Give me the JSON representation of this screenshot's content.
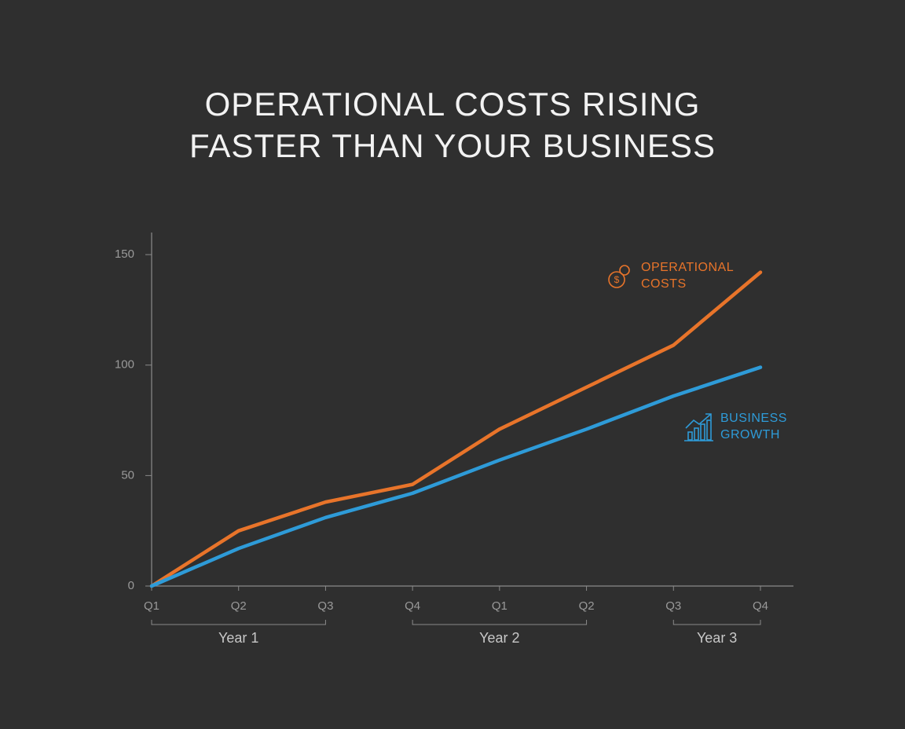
{
  "chart_data": {
    "type": "line",
    "title": [
      "OPERATIONAL COSTS RISING",
      "FASTER THAN YOUR BUSINESS"
    ],
    "categories": [
      "Q1",
      "Q2",
      "Q3",
      "Q4",
      "Q1",
      "Q2",
      "Q3",
      "Q4"
    ],
    "groups": [
      {
        "label": "Year 1",
        "from": 0,
        "to": 2
      },
      {
        "label": "Year 2",
        "from": 3,
        "to": 5
      },
      {
        "label": "Year 3",
        "from": 6,
        "to": 7
      }
    ],
    "series": [
      {
        "name": "OPERATIONAL COSTS",
        "color": "#e8742a",
        "values": [
          0,
          25,
          38,
          46,
          71,
          90,
          109,
          142
        ]
      },
      {
        "name": "BUSINESS GROWTH",
        "color": "#2e9bd8",
        "values": [
          0,
          17,
          31,
          42,
          57,
          71,
          86,
          99
        ]
      }
    ],
    "ylim": [
      0,
      160
    ],
    "yticks": [
      0,
      50,
      100,
      150
    ]
  }
}
